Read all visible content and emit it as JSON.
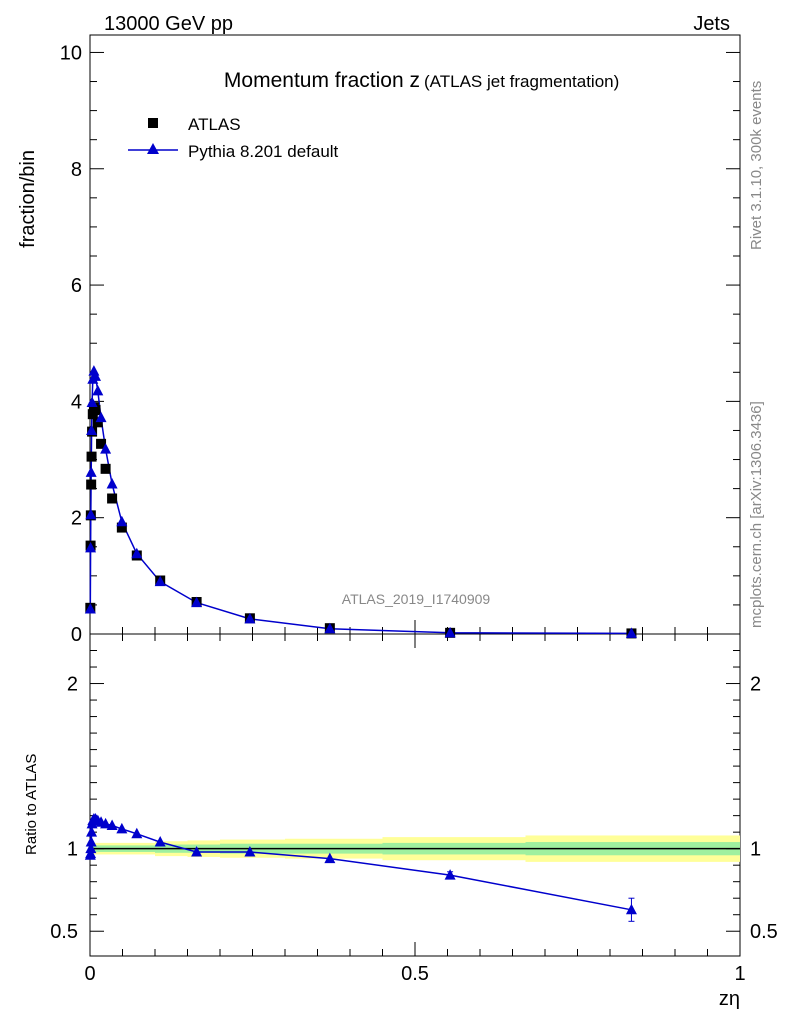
{
  "header": {
    "left": "13000 GeV pp",
    "right": "Jets"
  },
  "side_labels": {
    "rivet": "Rivet 3.1.10,  300k events",
    "mcplots": "mcplots.cern.ch [arXiv:1306.3436]"
  },
  "watermark": "ATLAS_2019_I1740909",
  "colors": {
    "mc": "#0000cc",
    "data": "#000000",
    "band_inner": "#9ff09f",
    "band_outer": "#ffff99"
  },
  "chart_data": [
    {
      "type": "scatter",
      "title_main": "Momentum fraction z",
      "title_sub": "(ATLAS jet fragmentation)",
      "ylabel": "fraction/bin",
      "xlim": [
        0,
        1
      ],
      "ylim": [
        0,
        10.3
      ],
      "yticks": [
        0,
        2,
        4,
        6,
        8,
        10
      ],
      "ytick_labels": [
        "0",
        "2",
        "4",
        "6",
        "8",
        "10"
      ],
      "legend": {
        "placement": "top-left"
      },
      "series": [
        {
          "name": "ATLAS",
          "marker": "square",
          "x": [
            0.0005,
            0.0009,
            0.0013,
            0.0018,
            0.0024,
            0.0032,
            0.0043,
            0.006,
            0.0085,
            0.012,
            0.017,
            0.024,
            0.034,
            0.049,
            0.072,
            0.108,
            0.164,
            0.246,
            0.369,
            0.554,
            0.833
          ],
          "y": [
            0.45,
            1.52,
            2.04,
            2.57,
            3.05,
            3.48,
            3.78,
            3.9,
            3.85,
            3.64,
            3.27,
            2.84,
            2.33,
            1.83,
            1.35,
            0.92,
            0.55,
            0.27,
            0.1,
            0.02,
            0.01
          ]
        },
        {
          "name": "Pythia 8.201 default",
          "marker": "triangle",
          "x": [
            0.0005,
            0.0009,
            0.0013,
            0.0018,
            0.0024,
            0.0032,
            0.0043,
            0.006,
            0.0085,
            0.012,
            0.017,
            0.024,
            0.034,
            0.049,
            0.072,
            0.108,
            0.164,
            0.246,
            0.369,
            0.554,
            0.833
          ],
          "y": [
            0.43,
            1.48,
            2.05,
            2.78,
            3.5,
            3.98,
            4.38,
            4.52,
            4.43,
            4.18,
            3.72,
            3.18,
            2.58,
            1.93,
            1.38,
            0.9,
            0.54,
            0.26,
            0.09,
            0.02,
            0.01
          ]
        }
      ]
    },
    {
      "type": "line",
      "ylabel": "Ratio to ATLAS",
      "xlabel": "zη",
      "xlim": [
        0,
        1
      ],
      "ylim": [
        0.35,
        2.3
      ],
      "yticks": [
        0.5,
        1,
        2
      ],
      "ytick_labels": [
        "0.5",
        "1",
        "2"
      ],
      "xticks": [
        0,
        0.5,
        1
      ],
      "xtick_labels": [
        "0",
        "0.5",
        "1"
      ],
      "band": {
        "x_edges": [
          0,
          0.05,
          0.1,
          0.15,
          0.2,
          0.3,
          0.45,
          0.67,
          1.0
        ],
        "inner": [
          0.02,
          0.02,
          0.025,
          0.025,
          0.03,
          0.03,
          0.035,
          0.04
        ],
        "outer": [
          0.035,
          0.035,
          0.045,
          0.05,
          0.055,
          0.06,
          0.07,
          0.08
        ]
      },
      "series": [
        {
          "name": "Pythia 8.201 default",
          "x": [
            0.0005,
            0.0009,
            0.0013,
            0.0018,
            0.0024,
            0.0032,
            0.0043,
            0.006,
            0.0085,
            0.012,
            0.017,
            0.024,
            0.034,
            0.049,
            0.072,
            0.108,
            0.164,
            0.246,
            0.369,
            0.554,
            0.833
          ],
          "y": [
            0.96,
            0.97,
            1.0,
            1.04,
            1.1,
            1.15,
            1.17,
            1.18,
            1.18,
            1.17,
            1.16,
            1.15,
            1.14,
            1.12,
            1.09,
            1.04,
            0.98,
            0.98,
            0.94,
            0.84,
            0.63
          ],
          "yerr": [
            0.01,
            0.01,
            0.01,
            0.01,
            0.01,
            0.01,
            0.01,
            0.01,
            0.01,
            0.01,
            0.01,
            0.01,
            0.01,
            0.01,
            0.01,
            0.01,
            0.01,
            0.01,
            0.01,
            0.02,
            0.07
          ]
        }
      ]
    }
  ]
}
